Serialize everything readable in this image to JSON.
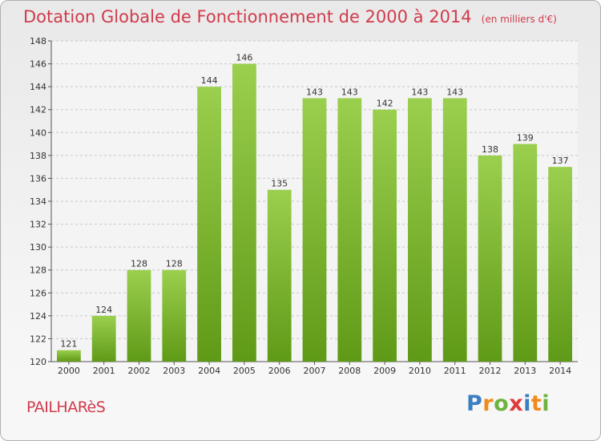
{
  "title": "Dotation Globale de Fonctionnement de 2000 à 2014",
  "subtitle": "(en milliers d'€)",
  "commune": "PAILHARèS",
  "logo": {
    "letters": [
      "P",
      "r",
      "o",
      "x",
      "i",
      "t",
      "i"
    ],
    "colors": [
      "#3c7fc1",
      "#f08a1c",
      "#6db33f",
      "#e03a3a",
      "#3c7fc1",
      "#f08a1c",
      "#6db33f"
    ]
  },
  "colors": {
    "title": "#d03b4c",
    "bar_top": "#9bcf4e",
    "bar_bottom": "#5f9a17",
    "grid": "#c8c8c8"
  },
  "chart_data": {
    "type": "bar",
    "title": "Dotation Globale de Fonctionnement de 2000 à 2014",
    "subtitle": "(en milliers d'€)",
    "categories": [
      "2000",
      "2001",
      "2002",
      "2003",
      "2004",
      "2005",
      "2006",
      "2007",
      "2008",
      "2009",
      "2010",
      "2011",
      "2012",
      "2013",
      "2014"
    ],
    "values": [
      121,
      124,
      128,
      128,
      144,
      146,
      135,
      143,
      143,
      142,
      143,
      143,
      138,
      139,
      137
    ],
    "ylim": [
      120,
      148
    ],
    "yticks": [
      120,
      122,
      124,
      126,
      128,
      130,
      132,
      134,
      136,
      138,
      140,
      142,
      144,
      146,
      148
    ],
    "grid": true,
    "data_labels": true
  }
}
